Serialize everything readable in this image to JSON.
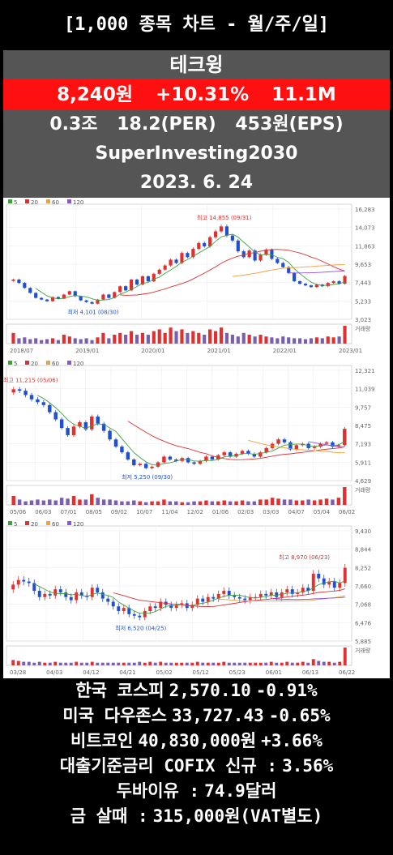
{
  "header": {
    "title": "[1,000 종목 차트 - 월/주/일]"
  },
  "stock": {
    "name": "테크윙",
    "price": "8,240원",
    "change": "+10.31%",
    "volume": "11.1M",
    "market_cap": "0.3조",
    "per": "18.2(PER)",
    "eps": "453원(EPS)",
    "channel": "SuperInvesting2030",
    "date": "2023. 6. 24"
  },
  "legend": {
    "ma5": "5",
    "ma20": "20",
    "ma60": "60",
    "ma120": "120",
    "volume_label": "거래량"
  },
  "colors": {
    "up": "#e03030",
    "down": "#2050d0",
    "ma5": "#40a040",
    "ma20": "#e03030",
    "ma60": "#f0a040",
    "ma120": "#9050e0"
  },
  "chart_data": [
    {
      "type": "candlestick",
      "title": "monthly",
      "ylim": [
        3023,
        16283
      ],
      "y_ticks": [
        "16,283",
        "14,073",
        "11,863",
        "9,653",
        "7,443",
        "5,233",
        "3,023"
      ],
      "x_ticks": [
        "2018/07",
        "2019/01",
        "2020/01",
        "2021/01",
        "2022/01",
        "2023/01"
      ],
      "high_label": "최고 14,855 (09/31)",
      "low_label": "최저 4,101 (08/30)",
      "closes": [
        7800,
        7400,
        6800,
        6200,
        5600,
        5400,
        5200,
        5700,
        5500,
        6000,
        6400,
        5800,
        5300,
        5100,
        4900,
        5400,
        6000,
        5600,
        6300,
        7000,
        6500,
        7800,
        7200,
        8200,
        7600,
        8500,
        9000,
        9500,
        10200,
        9800,
        11000,
        10500,
        11500,
        12200,
        11800,
        12900,
        13600,
        14200,
        13100,
        12500,
        11200,
        10500,
        11300,
        10100,
        10800,
        11400,
        10300,
        9800,
        9300,
        8600,
        7600,
        7300,
        7100,
        6900,
        7200,
        7000,
        7400,
        7600,
        7300,
        8240
      ],
      "volume": [
        0.6,
        0.3,
        0.35,
        0.25,
        0.3,
        0.2,
        0.25,
        0.3,
        0.2,
        0.5,
        0.4,
        0.3,
        0.25,
        0.3,
        0.2,
        0.35,
        0.6,
        0.3,
        0.5,
        0.6,
        0.5,
        0.7,
        0.5,
        0.6,
        0.5,
        0.7,
        0.8,
        0.6,
        0.9,
        0.7,
        0.8,
        0.6,
        0.7,
        0.6,
        0.5,
        0.8,
        0.7,
        0.9,
        0.6,
        0.5,
        0.4,
        0.6,
        0.5,
        0.4,
        0.5,
        0.4,
        0.35,
        0.3,
        0.4,
        0.35,
        0.3,
        0.3,
        0.25,
        0.3,
        0.35,
        0.3,
        0.4,
        0.35,
        0.4,
        1.0
      ]
    },
    {
      "type": "candlestick",
      "title": "weekly",
      "ylim": [
        4629,
        12321
      ],
      "y_ticks": [
        "12,321",
        "11,039",
        "9,757",
        "8,475",
        "7,193",
        "5,911",
        "4,629"
      ],
      "x_ticks": [
        "05/06",
        "06/03",
        "07/01",
        "08/05",
        "09/02",
        "10/07",
        "11/04",
        "12/02",
        "01/06",
        "02/03",
        "03/03",
        "04/07",
        "05/04",
        "06/02"
      ],
      "high_label": "최고 11,215 (05/06)",
      "low_label": "최저 5,250 (09/30)",
      "closes": [
        11000,
        10900,
        10600,
        10300,
        10100,
        9900,
        9400,
        8900,
        8300,
        7800,
        8400,
        8700,
        8200,
        9100,
        8600,
        8100,
        7500,
        7000,
        6600,
        6100,
        5700,
        5800,
        5500,
        5600,
        5900,
        6300,
        6100,
        6000,
        6200,
        5900,
        5800,
        6000,
        6300,
        6100,
        6400,
        6600,
        6300,
        6500,
        6700,
        6500,
        6300,
        6600,
        6900,
        7200,
        7500,
        7300,
        6800,
        7100,
        7200,
        6900,
        7000,
        7200,
        7300,
        7000,
        7100,
        8240
      ],
      "volume": [
        0.5,
        0.3,
        0.2,
        0.25,
        0.3,
        0.25,
        0.3,
        0.25,
        0.4,
        0.35,
        0.5,
        0.3,
        0.3,
        0.6,
        0.4,
        0.3,
        0.3,
        0.25,
        0.2,
        0.2,
        0.25,
        0.2,
        0.15,
        0.2,
        0.2,
        0.3,
        0.2,
        0.2,
        0.15,
        0.15,
        0.2,
        0.2,
        0.25,
        0.2,
        0.2,
        0.25,
        0.2,
        0.2,
        0.25,
        0.2,
        0.2,
        0.3,
        0.3,
        0.4,
        0.35,
        0.3,
        0.3,
        0.25,
        0.25,
        0.3,
        0.25,
        0.3,
        0.35,
        0.3,
        0.4,
        1.0
      ]
    },
    {
      "type": "candlestick",
      "title": "daily",
      "ylim": [
        5885,
        9430
      ],
      "y_ticks": [
        "9,430",
        "8,844",
        "8,252",
        "7,660",
        "7,068",
        "6,476",
        "5,885"
      ],
      "x_ticks": [
        "03/28",
        "04/03",
        "04/12",
        "04/21",
        "05/02",
        "05/12",
        "05/23",
        "06/01",
        "06/13",
        "06/22"
      ],
      "high_label": "최고 8,970 (06/23)",
      "low_label": "최저 6,520 (04/25)",
      "closes": [
        7700,
        7850,
        7800,
        7750,
        7500,
        7300,
        7400,
        7350,
        7550,
        7450,
        7300,
        7200,
        7450,
        7350,
        7300,
        7600,
        7450,
        7250,
        7150,
        7000,
        6850,
        6950,
        6750,
        6700,
        6650,
        6850,
        7000,
        6950,
        7150,
        7050,
        6950,
        7050,
        7100,
        6950,
        7050,
        7250,
        7150,
        7300,
        7250,
        7400,
        7500,
        7350,
        7300,
        7250,
        7200,
        7300,
        7300,
        7400,
        7350,
        7450,
        7300,
        7450,
        7550,
        7400,
        7450,
        7600,
        7500,
        8050,
        7900,
        7700,
        7800,
        7600,
        7750,
        8240
      ],
      "volume": [
        0.3,
        0.25,
        0.2,
        0.2,
        0.15,
        0.2,
        0.15,
        0.15,
        0.2,
        0.15,
        0.15,
        0.15,
        0.2,
        0.15,
        0.15,
        0.2,
        0.15,
        0.15,
        0.15,
        0.15,
        0.15,
        0.15,
        0.15,
        0.15,
        0.2,
        0.15,
        0.2,
        0.15,
        0.2,
        0.15,
        0.15,
        0.15,
        0.15,
        0.15,
        0.15,
        0.2,
        0.15,
        0.15,
        0.15,
        0.15,
        0.2,
        0.15,
        0.15,
        0.15,
        0.15,
        0.15,
        0.15,
        0.15,
        0.15,
        0.2,
        0.15,
        0.15,
        0.2,
        0.15,
        0.15,
        0.2,
        0.15,
        0.35,
        0.25,
        0.2,
        0.2,
        0.15,
        0.2,
        1.0
      ]
    }
  ],
  "market": [
    {
      "label": "한국 코스피",
      "value": "2,570.10",
      "change": "-0.91%"
    },
    {
      "label": "미국 다우존스",
      "value": "33,727.43",
      "change": "-0.65%"
    },
    {
      "label": "비트코인",
      "value": "40,830,000원",
      "change": "+3.66%"
    },
    {
      "label": "대출기준금리 COFIX 신규 :",
      "value": "3.56%",
      "change": ""
    },
    {
      "label": "두바이유 :",
      "value": "74.9달러",
      "change": ""
    },
    {
      "label": "금 살때 :",
      "value": "315,000원(VAT별도)",
      "change": ""
    }
  ]
}
